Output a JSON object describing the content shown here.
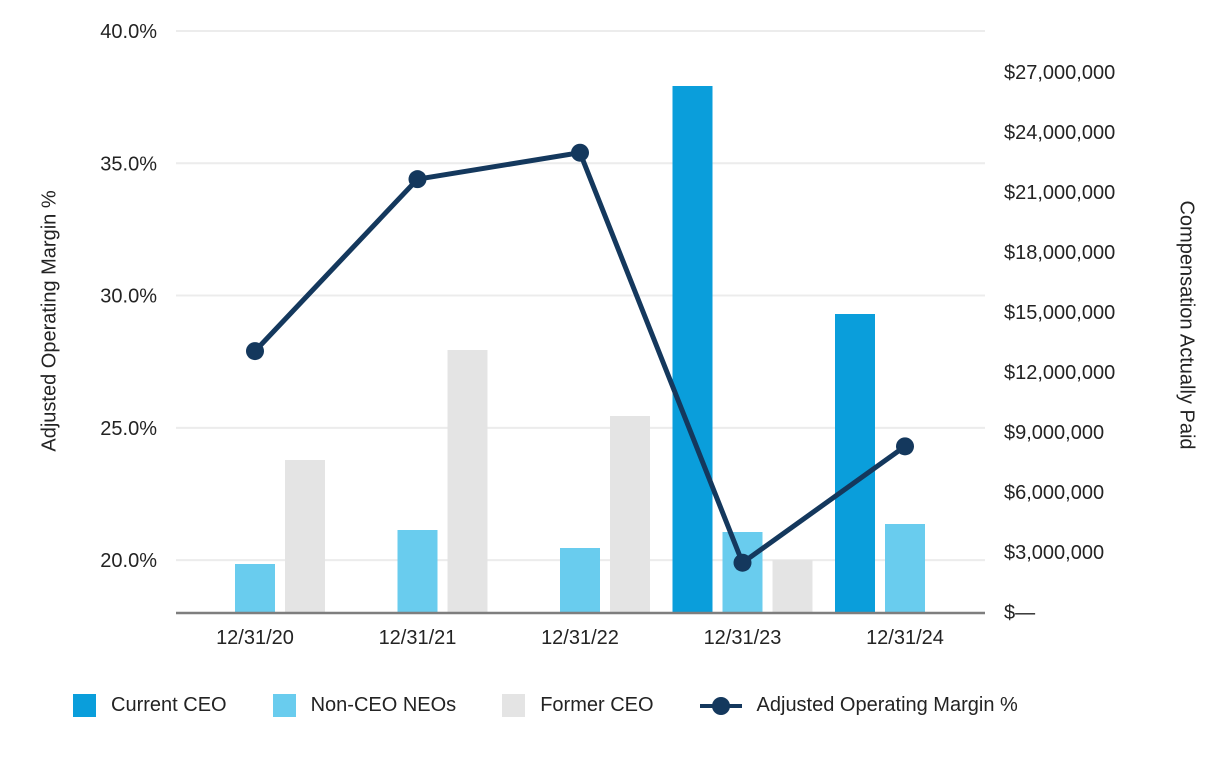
{
  "chart_data": {
    "type": "combo-bar-line",
    "title": "",
    "categories": [
      "12/31/20",
      "12/31/21",
      "12/31/22",
      "12/31/23",
      "12/31/24"
    ],
    "series": [
      {
        "name": "Current CEO",
        "type": "bar",
        "axis": "right",
        "color": "#0A9EDB",
        "values": [
          null,
          null,
          null,
          26300000,
          14900000
        ]
      },
      {
        "name": "Non-CEO NEOs",
        "type": "bar",
        "axis": "right",
        "color": "#69CCEE",
        "values": [
          2400000,
          4100000,
          3200000,
          4000000,
          4400000
        ]
      },
      {
        "name": "Former CEO",
        "type": "bar",
        "axis": "right",
        "color": "#E4E4E4",
        "values": [
          7600000,
          13100000,
          9800000,
          2600000,
          null
        ]
      },
      {
        "name": "Adjusted Operating Margin %",
        "type": "line",
        "axis": "left",
        "color": "#14385D",
        "values": [
          27.9,
          34.4,
          35.4,
          19.9,
          24.3
        ]
      }
    ],
    "left_axis": {
      "title": "Adjusted Operating Margin %",
      "min": 18,
      "max": 40,
      "ticks": [
        {
          "label": "40.0%",
          "value": 40
        },
        {
          "label": "35.0%",
          "value": 35
        },
        {
          "label": "30.0%",
          "value": 30
        },
        {
          "label": "25.0%",
          "value": 25
        },
        {
          "label": "20.0%",
          "value": 20
        }
      ]
    },
    "right_axis": {
      "title": "Compensation Actually Paid",
      "min": 0,
      "max": 27000000,
      "ticks": [
        {
          "label": "$27,000,000",
          "value": 27000000
        },
        {
          "label": "$24,000,000",
          "value": 24000000
        },
        {
          "label": "$21,000,000",
          "value": 21000000
        },
        {
          "label": "$18,000,000",
          "value": 18000000
        },
        {
          "label": "$15,000,000",
          "value": 15000000
        },
        {
          "label": "$12,000,000",
          "value": 12000000
        },
        {
          "label": "$9,000,000",
          "value": 9000000
        },
        {
          "label": "$6,000,000",
          "value": 6000000
        },
        {
          "label": "$3,000,000",
          "value": 3000000
        },
        {
          "label": "$—",
          "value": 0
        }
      ]
    },
    "grid": "horizontal",
    "legend_position": "bottom",
    "style": {
      "gridline_color": "#ECECEC",
      "axis_line_color": "#7E7E7E",
      "text_color": "#232323",
      "background": "#FFFFFF"
    }
  }
}
